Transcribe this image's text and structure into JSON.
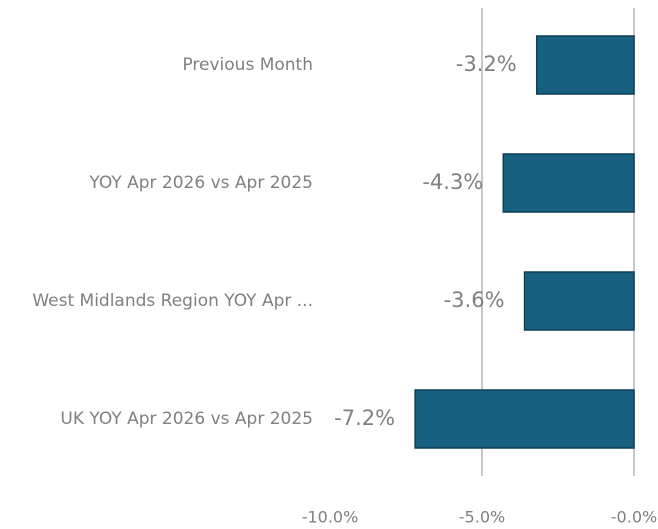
{
  "chart_data": {
    "type": "bar",
    "orientation": "horizontal",
    "categories": [
      "Previous Month",
      "YOY Apr 2026 vs Apr 2025",
      "West Midlands Region YOY Apr ...",
      "UK YOY Apr 2026 vs Apr 2025"
    ],
    "values": [
      -3.2,
      -4.3,
      -3.6,
      -7.2
    ],
    "value_labels": [
      "-3.2%",
      "-4.3%",
      "-3.6%",
      "-7.2%"
    ],
    "color": "#17607f",
    "xlim": [
      -10,
      0
    ],
    "xticks": [
      {
        "value": -10,
        "label": "-10.0%"
      },
      {
        "value": -5,
        "label": "-5.0%"
      },
      {
        "value": 0,
        "label": "-0.0%"
      }
    ],
    "grid": true
  }
}
